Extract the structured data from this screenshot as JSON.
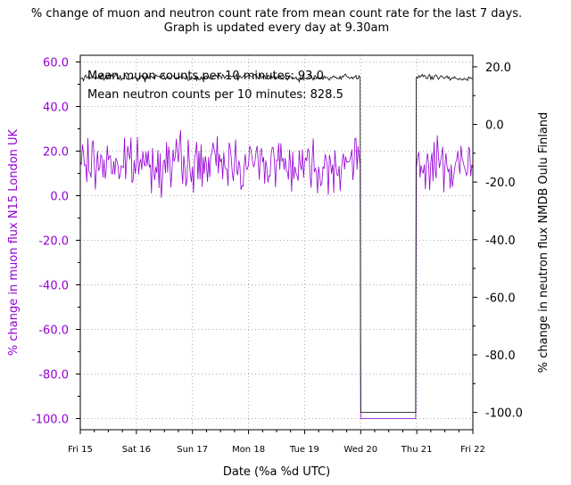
{
  "chart_data": {
    "type": "line",
    "title": "% change of muon and neutron count rate from mean count rate for the last 7 days.",
    "subtitle": "Graph is updated every day at 9.30am",
    "xlabel": "Date (%a %d UTC)",
    "ylabel_left": "% change in muon flux N15 London UK",
    "ylabel_right": "% change in neutron flux NMDB Oulu Finland",
    "x_ticks": [
      "Fri 15",
      "Sat 16",
      "Sun 17",
      "Mon 18",
      "Tue 19",
      "Wed 20",
      "Thu 21",
      "Fri 22"
    ],
    "xlim_days": [
      0,
      7
    ],
    "ylim_left": [
      -105,
      63
    ],
    "ylim_right": [
      -106,
      24
    ],
    "yticks_left": [
      "60.0",
      "40.0",
      "20.0",
      "0.0",
      "-20.0",
      "-40.0",
      "-60.0",
      "-80.0",
      "-100.0"
    ],
    "yticks_right": [
      "20.0",
      "0.0",
      "-20.0",
      "-40.0",
      "-60.0",
      "-80.0",
      "-100.0"
    ],
    "grid": true,
    "annotations": [
      "Mean muon counts per 10 minutes: 93.0",
      "Mean neutron counts per 10 minutes: 828.5"
    ],
    "series": [
      {
        "axis": "left",
        "color": "#9400D3",
        "x_days": [
          0,
          0.25,
          0.5,
          0.75,
          1,
          1.25,
          1.5,
          1.75,
          2,
          2.25,
          2.5,
          2.75,
          3,
          3.25,
          3.5,
          3.75,
          4,
          4.25,
          4.5,
          4.75,
          4.99,
          5.0,
          5.98,
          5.99,
          6.0,
          6.25,
          6.5,
          6.75,
          7.0
        ],
        "values": [
          15,
          14,
          16,
          13,
          15,
          14,
          16,
          15,
          13,
          14,
          15,
          16,
          14,
          15,
          16,
          14,
          15,
          13,
          14,
          15,
          14,
          -100,
          -100,
          13,
          14,
          15,
          13,
          14,
          12
        ]
      },
      {
        "axis": "right",
        "color": "#000000",
        "x_days": [
          0,
          0.5,
          1,
          1.5,
          2,
          2.5,
          3,
          3.5,
          4,
          4.5,
          4.99,
          5.0,
          5.98,
          5.99,
          6.0,
          6.5,
          7.0
        ],
        "values": [
          16,
          16.5,
          16,
          16.5,
          16,
          16.5,
          17,
          16.5,
          16,
          16.5,
          16,
          -100,
          -100,
          16,
          16.5,
          16,
          16
        ]
      }
    ]
  }
}
